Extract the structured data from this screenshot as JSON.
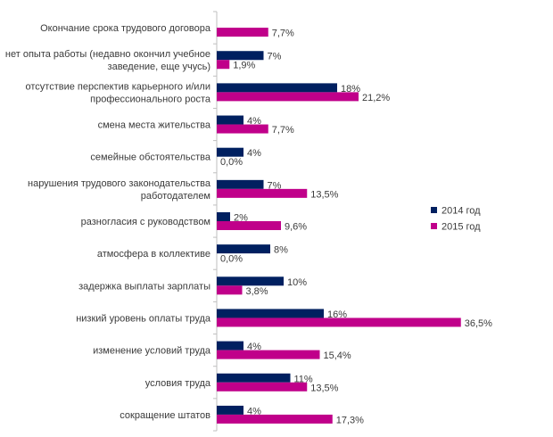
{
  "chart_data": {
    "type": "bar",
    "orientation": "horizontal",
    "title": "",
    "xlabel": "",
    "ylabel": "",
    "xlim": [
      0,
      40
    ],
    "grid": false,
    "legend_position": "right",
    "categories": [
      [
        "Окончание срока трудового договора"
      ],
      [
        "нет опыта работы (недавно окончил учебное",
        "заведение, еще учусь)"
      ],
      [
        "отсутствие перспектив карьерного и/или",
        "профессионального роста"
      ],
      [
        "смена места жительства"
      ],
      [
        "семейные обстоятельства"
      ],
      [
        "нарушения трудового законодательства",
        "работодателем"
      ],
      [
        "разногласия с руководством"
      ],
      [
        "атмосфера в коллективе"
      ],
      [
        "задержка выплаты зарплаты"
      ],
      [
        "низкий уровень оплаты труда"
      ],
      [
        "изменение условий труда"
      ],
      [
        "условия труда"
      ],
      [
        "сокращение штатов"
      ]
    ],
    "series": [
      {
        "name": "2014 год",
        "color": "#002060",
        "values": [
          null,
          7,
          18,
          4,
          4,
          7,
          2,
          8,
          10,
          16,
          4,
          11,
          4
        ],
        "labels": [
          "",
          "7%",
          "18%",
          "4%",
          "4%",
          "7%",
          "2%",
          "8%",
          "10%",
          "16%",
          "4%",
          "11%",
          "4%"
        ]
      },
      {
        "name": "2015 год",
        "color": "#C0008A",
        "values": [
          7.7,
          1.9,
          21.2,
          7.7,
          0.0,
          13.5,
          9.6,
          0.0,
          3.8,
          36.5,
          15.4,
          13.5,
          17.3
        ],
        "labels": [
          "7,7%",
          "1,9%",
          "21,2%",
          "7,7%",
          "0,0%",
          "13,5%",
          "9,6%",
          "0,0%",
          "3,8%",
          "36,5%",
          "15,4%",
          "13,5%",
          "17,3%"
        ]
      }
    ]
  }
}
